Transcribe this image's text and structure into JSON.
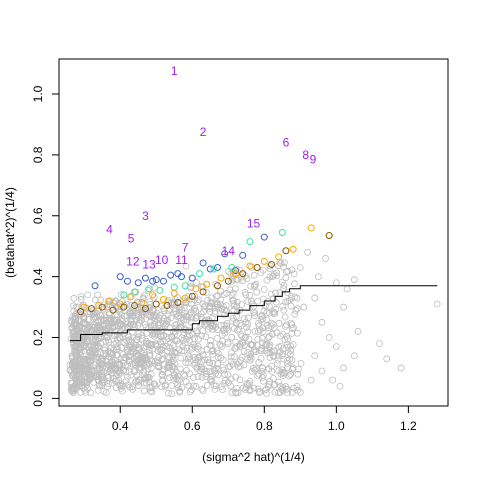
{
  "chart_data": {
    "type": "scatter",
    "title": "",
    "xlabel": "(sigma^2 hat)^(1/4)",
    "ylabel": "(betahat^2)^(1/4)",
    "xlim": [
      0.23,
      1.31
    ],
    "ylim": [
      -0.025,
      1.115
    ],
    "xticks": [
      "0.4",
      "0.6",
      "0.8",
      "1.0",
      "1.2"
    ],
    "yticks": [
      "0.0",
      "0.2",
      "0.4",
      "0.6",
      "0.8",
      "1.0"
    ],
    "xtick_values": [
      0.4,
      0.6,
      0.8,
      1.0,
      1.2
    ],
    "ytick_values": [
      0.0,
      0.2,
      0.4,
      0.6,
      0.8,
      1.0
    ],
    "grid": false,
    "legend": "none",
    "colors": {
      "gray": "#bebebe",
      "purple": "#a020f0",
      "blue": "#3a5fcd",
      "green": "#3ee4a0",
      "orange": "#ffa500",
      "brown": "#8b5a00",
      "line": "#000000"
    },
    "threshold_line": {
      "x": [
        0.26,
        0.29,
        0.29,
        0.35,
        0.35,
        0.42,
        0.42,
        0.6,
        0.6,
        0.62,
        0.62,
        0.67,
        0.67,
        0.7,
        0.7,
        0.73,
        0.73,
        0.76,
        0.76,
        0.8,
        0.8,
        0.83,
        0.83,
        0.85,
        0.85,
        0.87,
        0.87,
        0.9,
        0.9,
        1.28
      ],
      "y": [
        0.19,
        0.19,
        0.21,
        0.21,
        0.215,
        0.215,
        0.225,
        0.225,
        0.245,
        0.245,
        0.255,
        0.255,
        0.27,
        0.27,
        0.28,
        0.28,
        0.29,
        0.29,
        0.305,
        0.305,
        0.32,
        0.32,
        0.335,
        0.335,
        0.35,
        0.35,
        0.36,
        0.36,
        0.37,
        0.37
      ]
    },
    "labeled_points": [
      {
        "label": "1",
        "x": 0.55,
        "y": 1.075
      },
      {
        "label": "2",
        "x": 0.63,
        "y": 0.875
      },
      {
        "label": "3",
        "x": 0.47,
        "y": 0.6
      },
      {
        "label": "4",
        "x": 0.37,
        "y": 0.555
      },
      {
        "label": "5",
        "x": 0.43,
        "y": 0.525
      },
      {
        "label": "6",
        "x": 0.86,
        "y": 0.84
      },
      {
        "label": "7",
        "x": 0.58,
        "y": 0.495
      },
      {
        "label": "8",
        "x": 0.915,
        "y": 0.8
      },
      {
        "label": "9",
        "x": 0.935,
        "y": 0.785
      },
      {
        "label": "10",
        "x": 0.515,
        "y": 0.455
      },
      {
        "label": "11",
        "x": 0.57,
        "y": 0.455
      },
      {
        "label": "12",
        "x": 0.435,
        "y": 0.45
      },
      {
        "label": "13",
        "x": 0.48,
        "y": 0.44
      },
      {
        "label": "14",
        "x": 0.7,
        "y": 0.485
      },
      {
        "label": "15",
        "x": 0.77,
        "y": 0.575
      }
    ],
    "colored_points": [
      {
        "c": "blue",
        "x": 0.33,
        "y": 0.37
      },
      {
        "c": "blue",
        "x": 0.4,
        "y": 0.4
      },
      {
        "c": "blue",
        "x": 0.42,
        "y": 0.385
      },
      {
        "c": "blue",
        "x": 0.45,
        "y": 0.38
      },
      {
        "c": "blue",
        "x": 0.47,
        "y": 0.395
      },
      {
        "c": "blue",
        "x": 0.49,
        "y": 0.385
      },
      {
        "c": "blue",
        "x": 0.5,
        "y": 0.39
      },
      {
        "c": "blue",
        "x": 0.52,
        "y": 0.385
      },
      {
        "c": "blue",
        "x": 0.54,
        "y": 0.405
      },
      {
        "c": "blue",
        "x": 0.56,
        "y": 0.41
      },
      {
        "c": "blue",
        "x": 0.57,
        "y": 0.4
      },
      {
        "c": "blue",
        "x": 0.6,
        "y": 0.395
      },
      {
        "c": "blue",
        "x": 0.63,
        "y": 0.445
      },
      {
        "c": "blue",
        "x": 0.65,
        "y": 0.425
      },
      {
        "c": "blue",
        "x": 0.67,
        "y": 0.43
      },
      {
        "c": "blue",
        "x": 0.69,
        "y": 0.475
      },
      {
        "c": "blue",
        "x": 0.72,
        "y": 0.42
      },
      {
        "c": "blue",
        "x": 0.74,
        "y": 0.47
      },
      {
        "c": "blue",
        "x": 0.8,
        "y": 0.53
      },
      {
        "c": "green",
        "x": 0.41,
        "y": 0.34
      },
      {
        "c": "green",
        "x": 0.44,
        "y": 0.35
      },
      {
        "c": "green",
        "x": 0.48,
        "y": 0.36
      },
      {
        "c": "green",
        "x": 0.51,
        "y": 0.355
      },
      {
        "c": "green",
        "x": 0.55,
        "y": 0.365
      },
      {
        "c": "green",
        "x": 0.58,
        "y": 0.37
      },
      {
        "c": "green",
        "x": 0.62,
        "y": 0.41
      },
      {
        "c": "green",
        "x": 0.66,
        "y": 0.425
      },
      {
        "c": "green",
        "x": 0.71,
        "y": 0.43
      },
      {
        "c": "green",
        "x": 0.76,
        "y": 0.515
      },
      {
        "c": "green",
        "x": 0.85,
        "y": 0.545
      },
      {
        "c": "orange",
        "x": 0.3,
        "y": 0.3
      },
      {
        "c": "orange",
        "x": 0.34,
        "y": 0.305
      },
      {
        "c": "orange",
        "x": 0.37,
        "y": 0.32
      },
      {
        "c": "orange",
        "x": 0.4,
        "y": 0.31
      },
      {
        "c": "orange",
        "x": 0.43,
        "y": 0.335
      },
      {
        "c": "orange",
        "x": 0.46,
        "y": 0.315
      },
      {
        "c": "orange",
        "x": 0.49,
        "y": 0.34
      },
      {
        "c": "orange",
        "x": 0.52,
        "y": 0.325
      },
      {
        "c": "orange",
        "x": 0.55,
        "y": 0.345
      },
      {
        "c": "orange",
        "x": 0.58,
        "y": 0.33
      },
      {
        "c": "orange",
        "x": 0.61,
        "y": 0.36
      },
      {
        "c": "orange",
        "x": 0.64,
        "y": 0.375
      },
      {
        "c": "orange",
        "x": 0.68,
        "y": 0.395
      },
      {
        "c": "orange",
        "x": 0.72,
        "y": 0.41
      },
      {
        "c": "orange",
        "x": 0.76,
        "y": 0.435
      },
      {
        "c": "orange",
        "x": 0.8,
        "y": 0.45
      },
      {
        "c": "orange",
        "x": 0.84,
        "y": 0.465
      },
      {
        "c": "orange",
        "x": 0.88,
        "y": 0.49
      },
      {
        "c": "orange",
        "x": 0.93,
        "y": 0.56
      },
      {
        "c": "brown",
        "x": 0.29,
        "y": 0.285
      },
      {
        "c": "brown",
        "x": 0.32,
        "y": 0.295
      },
      {
        "c": "brown",
        "x": 0.35,
        "y": 0.3
      },
      {
        "c": "brown",
        "x": 0.38,
        "y": 0.29
      },
      {
        "c": "brown",
        "x": 0.41,
        "y": 0.3
      },
      {
        "c": "brown",
        "x": 0.44,
        "y": 0.305
      },
      {
        "c": "brown",
        "x": 0.47,
        "y": 0.295
      },
      {
        "c": "brown",
        "x": 0.5,
        "y": 0.31
      },
      {
        "c": "brown",
        "x": 0.53,
        "y": 0.305
      },
      {
        "c": "brown",
        "x": 0.56,
        "y": 0.315
      },
      {
        "c": "brown",
        "x": 0.6,
        "y": 0.335
      },
      {
        "c": "brown",
        "x": 0.63,
        "y": 0.35
      },
      {
        "c": "brown",
        "x": 0.67,
        "y": 0.37
      },
      {
        "c": "brown",
        "x": 0.7,
        "y": 0.385
      },
      {
        "c": "brown",
        "x": 0.74,
        "y": 0.41
      },
      {
        "c": "brown",
        "x": 0.78,
        "y": 0.43
      },
      {
        "c": "brown",
        "x": 0.82,
        "y": 0.44
      },
      {
        "c": "brown",
        "x": 0.86,
        "y": 0.485
      },
      {
        "c": "brown",
        "x": 0.98,
        "y": 0.535
      }
    ],
    "gray_outliers": [
      {
        "x": 0.27,
        "y": 0.03
      },
      {
        "x": 0.26,
        "y": 0.11
      },
      {
        "x": 0.28,
        "y": 0.28
      },
      {
        "x": 0.9,
        "y": 0.43
      },
      {
        "x": 0.92,
        "y": 0.48
      },
      {
        "x": 0.95,
        "y": 0.4
      },
      {
        "x": 0.97,
        "y": 0.46
      },
      {
        "x": 1.0,
        "y": 0.38
      },
      {
        "x": 1.03,
        "y": 0.36
      },
      {
        "x": 1.05,
        "y": 0.39
      },
      {
        "x": 1.02,
        "y": 0.3
      },
      {
        "x": 1.06,
        "y": 0.22
      },
      {
        "x": 1.0,
        "y": 0.17
      },
      {
        "x": 0.98,
        "y": 0.2
      },
      {
        "x": 1.05,
        "y": 0.14
      },
      {
        "x": 1.02,
        "y": 0.1
      },
      {
        "x": 0.99,
        "y": 0.06
      },
      {
        "x": 1.01,
        "y": 0.04
      },
      {
        "x": 1.12,
        "y": 0.18
      },
      {
        "x": 1.14,
        "y": 0.13
      },
      {
        "x": 1.18,
        "y": 0.1
      },
      {
        "x": 1.28,
        "y": 0.31
      },
      {
        "x": 0.94,
        "y": 0.14
      },
      {
        "x": 0.96,
        "y": 0.09
      },
      {
        "x": 0.93,
        "y": 0.06
      },
      {
        "x": 0.9,
        "y": 0.02
      },
      {
        "x": 0.88,
        "y": 0.1
      },
      {
        "x": 0.91,
        "y": 0.3
      },
      {
        "x": 0.94,
        "y": 0.33
      },
      {
        "x": 0.96,
        "y": 0.25
      }
    ]
  }
}
